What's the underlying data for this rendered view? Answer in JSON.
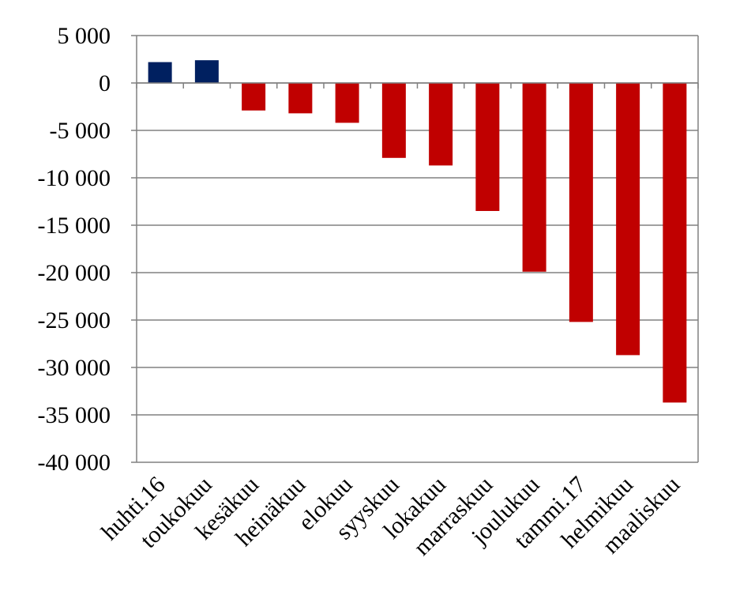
{
  "chart_data": {
    "type": "bar",
    "categories": [
      "huhti.16",
      "toukokuu",
      "kesäkuu",
      "heinäkuu",
      "elokuu",
      "syyskuu",
      "lokakuu",
      "marraskuu",
      "joulukuu",
      "tammi.17",
      "helmikuu",
      "maaliskuu"
    ],
    "values": [
      2200,
      2400,
      -2900,
      -3200,
      -4200,
      -7900,
      -8700,
      -13500,
      -19900,
      -25200,
      -28700,
      -33700
    ],
    "ylim": [
      -40000,
      5000
    ],
    "yticks": [
      5000,
      0,
      -5000,
      -10000,
      -15000,
      -20000,
      -25000,
      -30000,
      -35000,
      -40000
    ],
    "ytick_labels": [
      "5 000",
      "0",
      "-5 000",
      "-10 000",
      "-15 000",
      "-20 000",
      "-25 000",
      "-30 000",
      "-35 000",
      "-40 000"
    ],
    "grid": true,
    "legend": "none",
    "colors": {
      "positive": "#002060",
      "negative": "#c00000",
      "grid": "#808080",
      "axis": "#808080"
    }
  }
}
